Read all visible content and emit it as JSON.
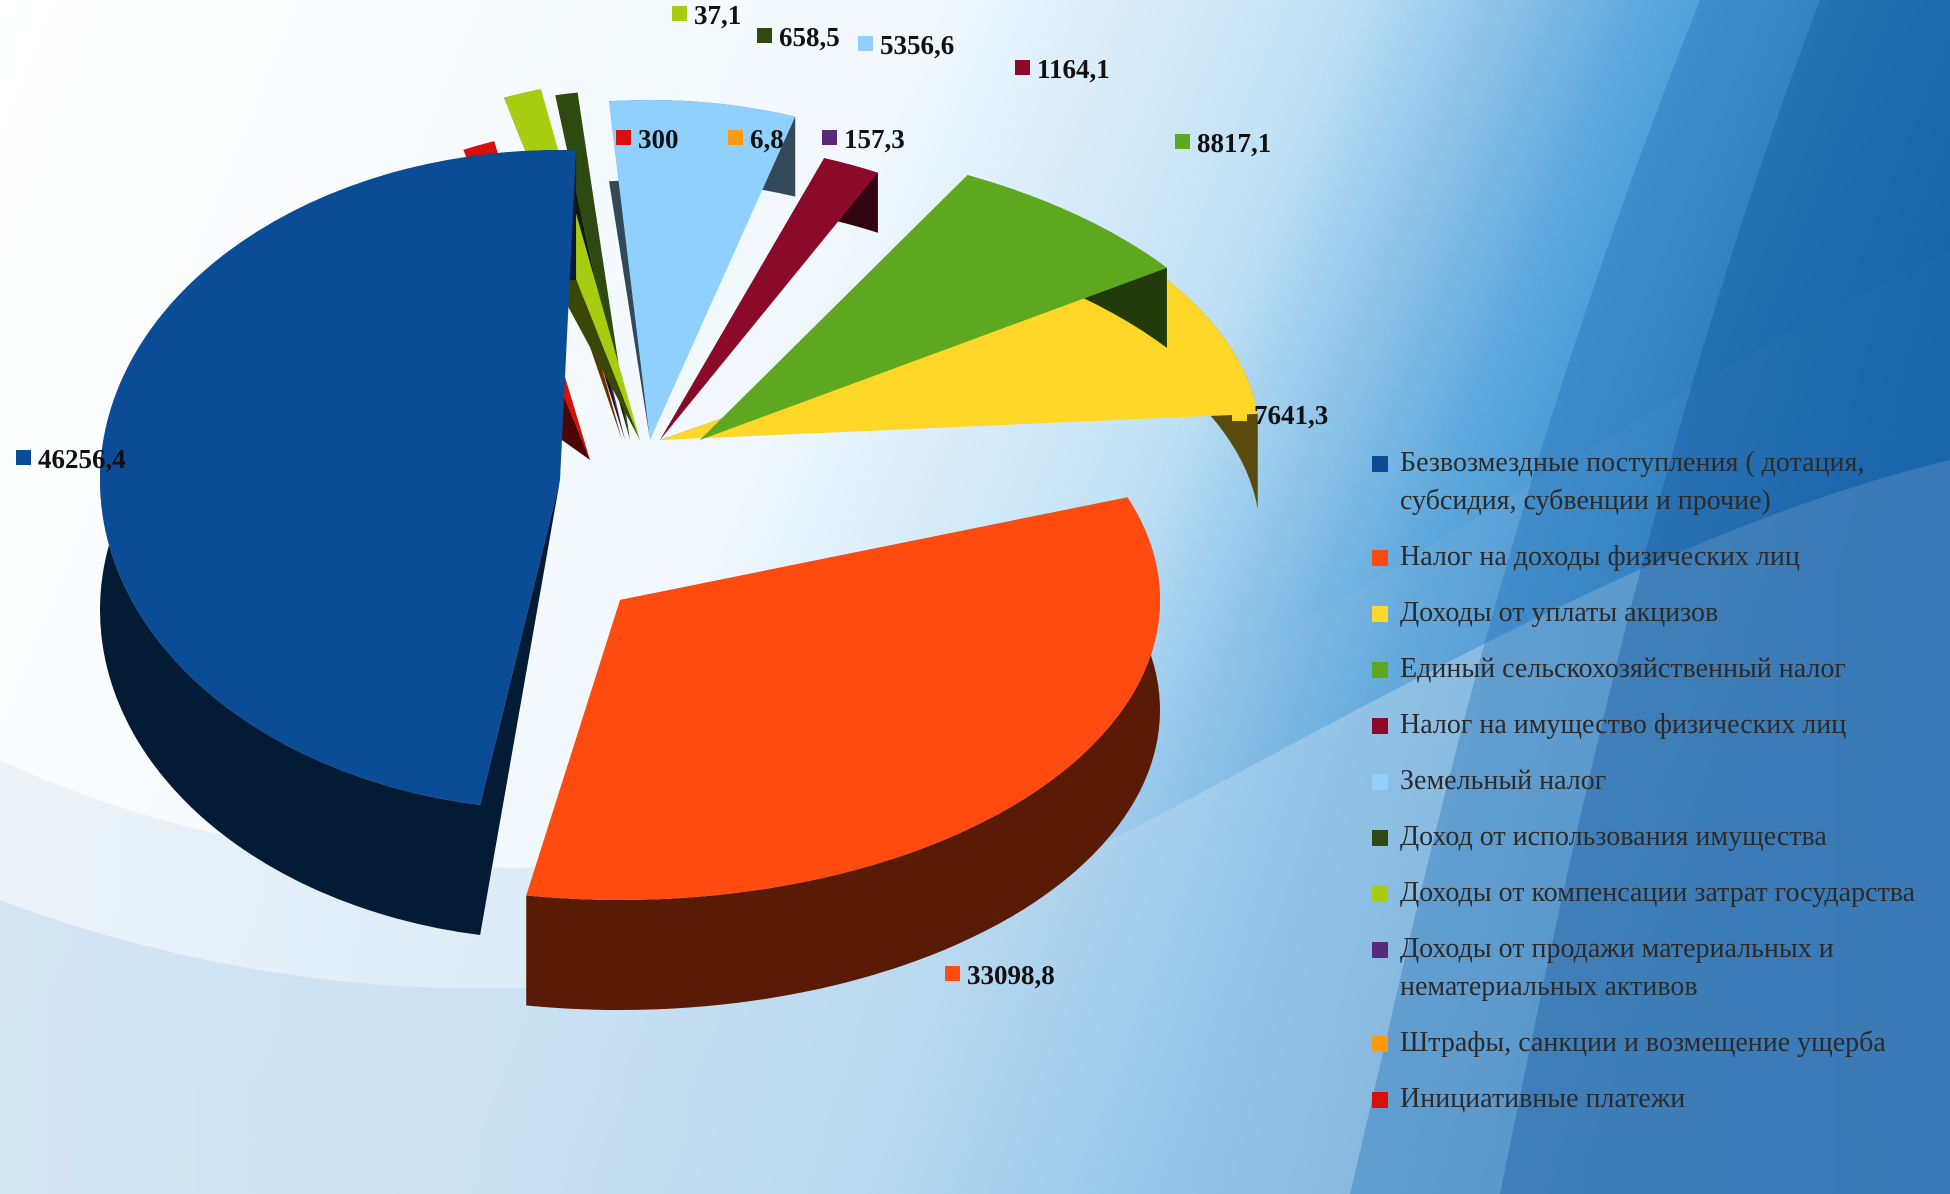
{
  "chart_data": {
    "type": "pie",
    "style": "3d-exploded",
    "legend_position": "right",
    "series": [
      {
        "name": "Безвозмездные поступления ( дотация, субсидия, субвенции и прочие)",
        "value": 46256.4,
        "label": "46256,4",
        "color": "#0b4c96"
      },
      {
        "name": "Налог на доходы физических лиц",
        "value": 33098.8,
        "label": "33098,8",
        "color": "#ff4b10"
      },
      {
        "name": "Доходы от уплаты акцизов",
        "value": 7641.3,
        "label": "7641,3",
        "color": "#ffd728"
      },
      {
        "name": "Единый сельскохозяйственный налог",
        "value": 8817.1,
        "label": "8817,1",
        "color": "#5ea81f"
      },
      {
        "name": "Налог на имущество физических лиц",
        "value": 1164.1,
        "label": "1164,1",
        "color": "#8b0a2a"
      },
      {
        "name": "Земельный налог",
        "value": 5356.6,
        "label": "5356,6",
        "color": "#8fd0ff"
      },
      {
        "name": "Доход от использования имущества",
        "value": 658.5,
        "label": "658,5",
        "color": "#2e4a10"
      },
      {
        "name": "Доходы от компенсации затрат государства",
        "value": 37.1,
        "label": "37,1",
        "color": "#a8cc10"
      },
      {
        "name": "Доходы от продажи материальных и нематериальных активов",
        "value": 157.3,
        "label": "157,3",
        "color": "#5a2a7a"
      },
      {
        "name": "Штрафы, санкции и возмещение ущерба",
        "value": 6.8,
        "label": "6,8",
        "color": "#ff9a10"
      },
      {
        "name": "Инициативные платежи",
        "value": 300,
        "label": "300",
        "color": "#d8100c"
      }
    ]
  }
}
